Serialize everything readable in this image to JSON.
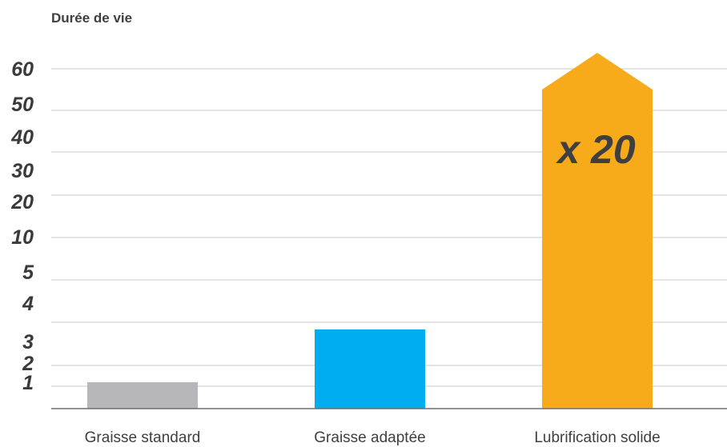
{
  "chart_data": {
    "type": "bar",
    "ylabel": "Durée de vie",
    "y_ticks": [
      "1",
      "2",
      "3",
      "4",
      "5",
      "10",
      "20",
      "30",
      "40",
      "50",
      "60"
    ],
    "categories": [
      "Graisse standard",
      "Graisse adaptée",
      "Lubrification solide"
    ],
    "values": [
      1,
      3,
      60
    ],
    "annotation": "x 20",
    "grid": true,
    "colors": {
      "bars": [
        "#b7b7b9",
        "#00adef",
        "#f7ab1b"
      ],
      "grid": "#c8c8c8",
      "axis": "#6e6e6e"
    }
  }
}
